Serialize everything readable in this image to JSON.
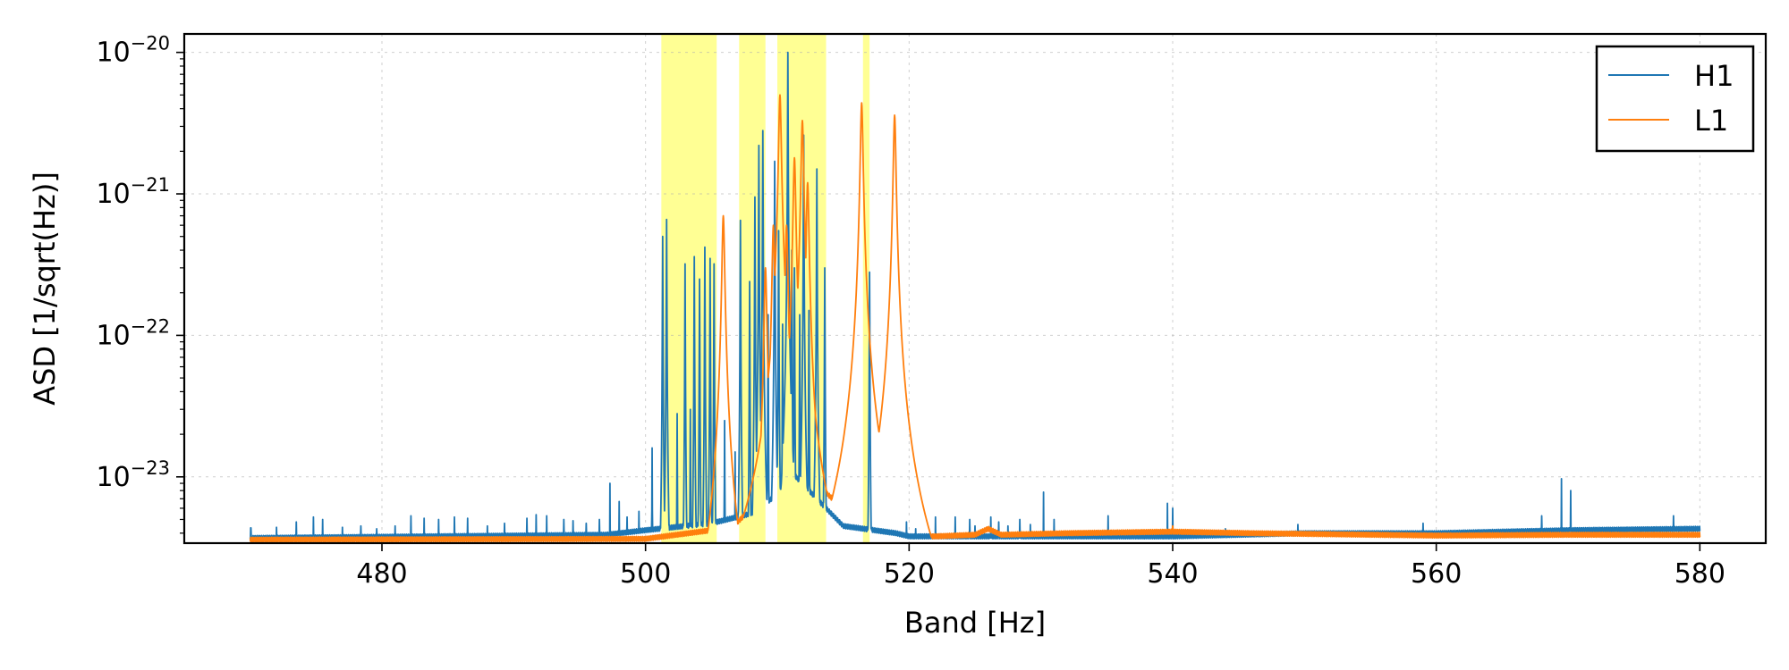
{
  "chart_data": {
    "type": "line",
    "xlabel": "Band [Hz]",
    "ylabel": "ASD [1/sqrt(Hz)]",
    "xlim": [
      465,
      585
    ],
    "x_ticks": [
      480,
      500,
      520,
      540,
      560,
      580
    ],
    "yscale": "log",
    "ylim": [
      3.4e-24,
      1.35e-20
    ],
    "y_ticks": [
      {
        "value": 1e-23,
        "base": "10",
        "exp": "−23"
      },
      {
        "value": 1e-22,
        "base": "10",
        "exp": "−22"
      },
      {
        "value": 1e-21,
        "base": "10",
        "exp": "−21"
      },
      {
        "value": 1e-20,
        "base": "10",
        "exp": "−20"
      }
    ],
    "grid": true,
    "legend_position": "top-right",
    "highlighted_bands": [
      [
        501.2,
        505.4
      ],
      [
        507.1,
        509.1
      ],
      [
        510.0,
        513.7
      ],
      [
        516.5,
        517.0
      ]
    ],
    "highlight_color": "#ffff66",
    "series": [
      {
        "name": "H1",
        "color": "#1f77b4",
        "baseline": [
          [
            470,
            3.7e-24
          ],
          [
            497,
            3.9e-24
          ],
          [
            500,
            4.2e-24
          ],
          [
            505,
            4.7e-24
          ],
          [
            508,
            5.5e-24
          ],
          [
            510,
            7.5e-24
          ],
          [
            511,
            1.1e-23
          ],
          [
            513,
            7e-24
          ],
          [
            515,
            4.5e-24
          ],
          [
            519,
            4e-24
          ],
          [
            520,
            3.8e-24
          ],
          [
            530,
            3.8e-24
          ],
          [
            540,
            3.8e-24
          ],
          [
            550,
            4e-24
          ],
          [
            560,
            4e-24
          ],
          [
            570,
            4.2e-24
          ],
          [
            580,
            4.3e-24
          ]
        ],
        "peaks": [
          [
            470.05,
            6.3e-24
          ],
          [
            472,
            4.4e-24
          ],
          [
            473.5,
            4.8e-24
          ],
          [
            474.8,
            5.2e-24
          ],
          [
            475.5,
            5e-24
          ],
          [
            477,
            4.4e-24
          ],
          [
            478.4,
            4.5e-24
          ],
          [
            479.6,
            4.3e-24
          ],
          [
            481,
            4.5e-24
          ],
          [
            482.2,
            5.3e-24
          ],
          [
            483.2,
            5.1e-24
          ],
          [
            484.3,
            5e-24
          ],
          [
            485.5,
            5.2e-24
          ],
          [
            486.5,
            5.1e-24
          ],
          [
            488,
            4.5e-24
          ],
          [
            489.3,
            4.7e-24
          ],
          [
            491,
            5.1e-24
          ],
          [
            491.7,
            5.4e-24
          ],
          [
            492.5,
            5.3e-24
          ],
          [
            493.8,
            5e-24
          ],
          [
            494.5,
            4.9e-24
          ],
          [
            495.5,
            4.7e-24
          ],
          [
            496.5,
            5e-24
          ],
          [
            497.3,
            9e-24
          ],
          [
            498,
            6.7e-24
          ],
          [
            498.6,
            5.2e-24
          ],
          [
            499.5,
            5.7e-24
          ],
          [
            500.5,
            1.6e-23
          ],
          [
            501.3,
            5e-22
          ],
          [
            501.6,
            6.6e-22
          ],
          [
            502.4,
            2.8e-23
          ],
          [
            503.0,
            3.2e-22
          ],
          [
            503.4,
            3e-23
          ],
          [
            503.7,
            3.6e-22
          ],
          [
            504.1,
            2.5e-22
          ],
          [
            504.5,
            4.2e-22
          ],
          [
            504.9,
            3.5e-22
          ],
          [
            505.2,
            3.2e-22
          ],
          [
            506.0,
            2.5e-23
          ],
          [
            506.8,
            1.5e-23
          ],
          [
            507.2,
            6.5e-22
          ],
          [
            507.9,
            2.4e-22
          ],
          [
            508.3,
            9.5e-22
          ],
          [
            508.6,
            2.2e-21
          ],
          [
            508.9,
            2.8e-21
          ],
          [
            509.3,
            1.4e-22
          ],
          [
            509.8,
            1.7e-21
          ],
          [
            510.1,
            5.5e-22
          ],
          [
            510.4,
            1.2e-22
          ],
          [
            510.8,
            1e-20
          ],
          [
            511.1,
            4e-22
          ],
          [
            511.3,
            3e-22
          ],
          [
            511.7,
            1.4e-22
          ],
          [
            512.0,
            2.6e-21
          ],
          [
            512.4,
            1.5e-22
          ],
          [
            513.0,
            1.5e-21
          ],
          [
            513.6,
            3e-22
          ],
          [
            517.0,
            2.8e-22
          ],
          [
            519.8,
            4.8e-24
          ],
          [
            520.5,
            4.3e-24
          ],
          [
            522,
            5.2e-24
          ],
          [
            523.5,
            5.2e-24
          ],
          [
            524.6,
            5e-24
          ],
          [
            525,
            4.5e-24
          ],
          [
            526.2,
            5.2e-24
          ],
          [
            526.8,
            4.8e-24
          ],
          [
            527.5,
            4.5e-24
          ],
          [
            528.4,
            5e-24
          ],
          [
            529.2,
            4.6e-24
          ],
          [
            530.2,
            7.8e-24
          ],
          [
            531,
            5e-24
          ],
          [
            535.1,
            5.3e-24
          ],
          [
            539.6,
            6.5e-24
          ],
          [
            540.0,
            6e-24
          ],
          [
            544,
            4.3e-24
          ],
          [
            549.5,
            4.6e-24
          ],
          [
            559,
            4.7e-24
          ],
          [
            568,
            5.3e-24
          ],
          [
            569.5,
            9.7e-24
          ],
          [
            570.2,
            8e-24
          ],
          [
            578,
            5.3e-24
          ]
        ]
      },
      {
        "name": "L1",
        "color": "#ff7f0e",
        "baseline": [
          [
            470,
            3.6e-24
          ],
          [
            500,
            3.65e-24
          ],
          [
            505,
            4.2e-24
          ],
          [
            507,
            4.8e-24
          ],
          [
            508,
            6e-24
          ],
          [
            509.5,
            1e-23
          ],
          [
            510.5,
            1.3e-23
          ],
          [
            511.5,
            1.6e-23
          ],
          [
            512.5,
            1.1e-23
          ],
          [
            513.5,
            8e-24
          ],
          [
            515,
            6e-24
          ],
          [
            519.5,
            5e-24
          ],
          [
            520,
            3.8e-24
          ],
          [
            522,
            3.8e-24
          ],
          [
            525,
            3.9e-24
          ],
          [
            526,
            4.3e-24
          ],
          [
            527,
            3.9e-24
          ],
          [
            532,
            4e-24
          ],
          [
            540,
            4.1e-24
          ],
          [
            546,
            4e-24
          ],
          [
            560,
            3.85e-24
          ],
          [
            570,
            3.9e-24
          ],
          [
            580,
            3.9e-24
          ]
        ],
        "peaks": [
          [
            505.9,
            7e-22
          ],
          [
            509.1,
            3e-22
          ],
          [
            509.7,
            6e-22
          ],
          [
            510.2,
            5e-21
          ],
          [
            510.7,
            6e-22
          ],
          [
            511.3,
            1.8e-21
          ],
          [
            511.9,
            3.3e-21
          ],
          [
            512.3,
            1.2e-21
          ],
          [
            516.1,
            2e-22
          ],
          [
            516.4,
            4.4e-21
          ],
          [
            518.9,
            3.6e-21
          ],
          [
            540.0,
            4.5e-24
          ]
        ]
      }
    ]
  }
}
